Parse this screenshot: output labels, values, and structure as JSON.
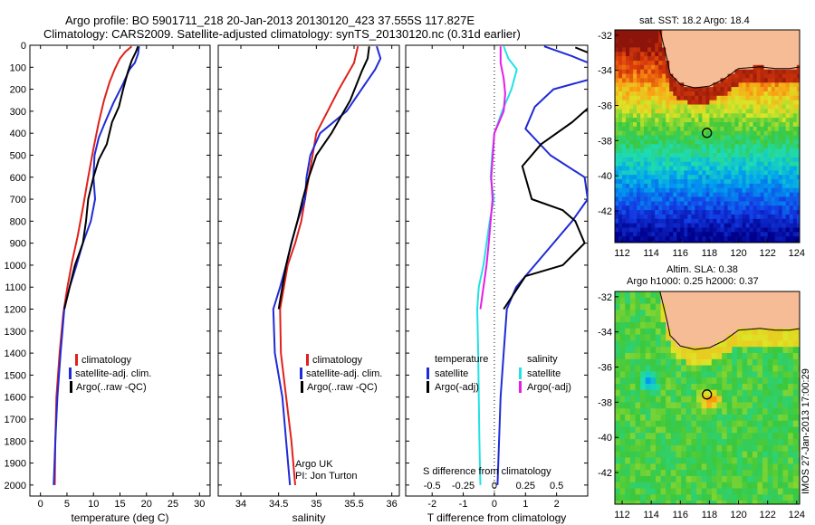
{
  "header": {
    "line1": "Argo profile: BO 5901711_218 20-Jan-2013 20130120_423 37.555S 117.827E",
    "line2": "Climatology: CARS2009. Satellite-adjusted climatology: synTS_20130120.nc (0.31d earlier)"
  },
  "colors": {
    "climatology": "#e0211b",
    "satellite": "#1f2bd6",
    "argo": "#000000",
    "cyan": "#22e1e6",
    "magenta": "#e81ce6"
  },
  "chart_data": [
    {
      "type": "line",
      "id": "temperature",
      "xlabel": "temperature (deg C)",
      "ylabel": "",
      "xlim": [
        -2,
        32
      ],
      "ylim": [
        0,
        2050
      ],
      "xticks": [
        0,
        5,
        10,
        15,
        20,
        25,
        30
      ],
      "yticks": [
        0,
        100,
        200,
        300,
        400,
        500,
        600,
        700,
        800,
        900,
        1000,
        1100,
        1200,
        1300,
        1400,
        1500,
        1600,
        1700,
        1800,
        1900,
        2000
      ],
      "legend": {
        "placement": "lower-center",
        "entries": [
          "climatology",
          "satellite-adj. clim.",
          "Argo(..raw -QC)"
        ]
      },
      "series": [
        {
          "name": "climatology",
          "color": "#e0211b",
          "points": [
            [
              17.2,
              5
            ],
            [
              16.0,
              30
            ],
            [
              15.0,
              60
            ],
            [
              14.0,
              110
            ],
            [
              13.0,
              170
            ],
            [
              12.0,
              250
            ],
            [
              11.0,
              350
            ],
            [
              10.0,
              470
            ],
            [
              9.0,
              600
            ],
            [
              8.0,
              740
            ],
            [
              7.0,
              870
            ],
            [
              6.0,
              980
            ],
            [
              5.0,
              1110
            ],
            [
              4.3,
              1220
            ],
            [
              3.6,
              1400
            ],
            [
              3.0,
              1600
            ],
            [
              2.8,
              1800
            ],
            [
              2.7,
              2000
            ]
          ]
        },
        {
          "name": "satellite-adj. clim.",
          "color": "#1f2bd6",
          "points": [
            [
              18.6,
              5
            ],
            [
              18.4,
              40
            ],
            [
              17.8,
              80
            ],
            [
              16.8,
              110
            ],
            [
              15.5,
              180
            ],
            [
              13.8,
              260
            ],
            [
              12.2,
              350
            ],
            [
              11.0,
              420
            ],
            [
              10.2,
              500
            ],
            [
              10.0,
              600
            ],
            [
              10.3,
              700
            ],
            [
              9.5,
              800
            ],
            [
              8.0,
              900
            ],
            [
              6.8,
              1000
            ],
            [
              5.5,
              1100
            ],
            [
              4.5,
              1200
            ],
            [
              3.8,
              1400
            ],
            [
              3.2,
              1600
            ],
            [
              2.8,
              1800
            ],
            [
              2.5,
              2000
            ]
          ]
        },
        {
          "name": "Argo(..raw -QC)",
          "color": "#000000",
          "points": [
            [
              18.4,
              5
            ],
            [
              18.0,
              30
            ],
            [
              17.2,
              70
            ],
            [
              16.5,
              120
            ],
            [
              15.6,
              200
            ],
            [
              14.8,
              280
            ],
            [
              13.5,
              350
            ],
            [
              12.5,
              450
            ],
            [
              11.0,
              520
            ],
            [
              10.0,
              600
            ],
            [
              9.0,
              700
            ],
            [
              8.6,
              800
            ],
            [
              8.0,
              900
            ],
            [
              6.5,
              1000
            ],
            [
              5.5,
              1100
            ],
            [
              4.5,
              1200
            ]
          ]
        }
      ]
    },
    {
      "type": "line",
      "id": "salinity",
      "xlabel": "salinity",
      "ylabel": "",
      "xlim": [
        33.7,
        36.1
      ],
      "ylim": [
        0,
        2050
      ],
      "xticks": [
        34,
        34.5,
        35,
        35.5,
        36
      ],
      "legend": {
        "placement": "lower-center",
        "entries": [
          "climatology",
          "satellite-adj. clim.",
          "Argo(..raw -QC)"
        ]
      },
      "annotation": {
        "lines": [
          "Argo UK",
          "PI: Jon Turton"
        ]
      },
      "series": [
        {
          "name": "climatology",
          "color": "#e0211b",
          "points": [
            [
              35.55,
              5
            ],
            [
              35.5,
              80
            ],
            [
              35.3,
              200
            ],
            [
              35.15,
              300
            ],
            [
              35.0,
              400
            ],
            [
              34.95,
              500
            ],
            [
              34.9,
              600
            ],
            [
              34.85,
              700
            ],
            [
              34.8,
              800
            ],
            [
              34.72,
              900
            ],
            [
              34.62,
              1000
            ],
            [
              34.57,
              1100
            ],
            [
              34.52,
              1200
            ],
            [
              34.53,
              1400
            ],
            [
              34.6,
              1600
            ],
            [
              34.67,
              1800
            ],
            [
              34.72,
              2000
            ]
          ]
        },
        {
          "name": "satellite-adj. clim.",
          "color": "#1f2bd6",
          "points": [
            [
              35.8,
              5
            ],
            [
              35.85,
              60
            ],
            [
              35.78,
              110
            ],
            [
              35.6,
              200
            ],
            [
              35.4,
              300
            ],
            [
              35.05,
              400
            ],
            [
              34.92,
              500
            ],
            [
              34.87,
              600
            ],
            [
              34.85,
              700
            ],
            [
              34.75,
              800
            ],
            [
              34.67,
              900
            ],
            [
              34.6,
              1000
            ],
            [
              34.52,
              1100
            ],
            [
              34.43,
              1200
            ],
            [
              34.45,
              1400
            ],
            [
              34.55,
              1600
            ],
            [
              34.6,
              1800
            ],
            [
              34.65,
              2000
            ]
          ]
        },
        {
          "name": "Argo(..raw -QC)",
          "color": "#000000",
          "points": [
            [
              35.7,
              5
            ],
            [
              35.68,
              60
            ],
            [
              35.6,
              120
            ],
            [
              35.45,
              250
            ],
            [
              35.2,
              400
            ],
            [
              35.0,
              500
            ],
            [
              34.9,
              600
            ],
            [
              34.82,
              700
            ],
            [
              34.75,
              800
            ],
            [
              34.67,
              900
            ],
            [
              34.6,
              1000
            ],
            [
              34.55,
              1100
            ],
            [
              34.5,
              1200
            ]
          ]
        }
      ]
    },
    {
      "type": "line",
      "id": "differences",
      "xlabel": "T difference from climatology",
      "xlabel2": "S difference from climatology",
      "ylabel": "",
      "xlim": [
        -2.85,
        3.0
      ],
      "ylim": [
        0,
        2050
      ],
      "xticks": [
        -2,
        -1,
        0,
        1,
        2
      ],
      "xticks_s": [
        "-0.5",
        "-0.25",
        "0",
        "0.25",
        "0.5"
      ],
      "legend": {
        "placement": "lower-center",
        "temperature_header": "temperature",
        "salinity_header": "salinity",
        "entries": [
          "satellite",
          "Argo(-adj)",
          "satellite",
          "Argo(-adj)"
        ]
      },
      "series": [
        {
          "name": "temperature satellite",
          "color": "#1f2bd6",
          "points": [
            [
              1.6,
              5
            ],
            [
              2.5,
              50
            ],
            [
              3.2,
              90
            ],
            [
              3.2,
              150
            ],
            [
              1.9,
              200
            ],
            [
              1.3,
              280
            ],
            [
              1.0,
              380
            ],
            [
              1.8,
              500
            ],
            [
              2.9,
              600
            ],
            [
              3.0,
              700
            ],
            [
              2.5,
              800
            ],
            [
              1.9,
              900
            ],
            [
              1.3,
              1000
            ],
            [
              0.7,
              1100
            ],
            [
              0.4,
              1200
            ],
            [
              0.3,
              1400
            ],
            [
              0.2,
              1600
            ],
            [
              0.15,
              1800
            ],
            [
              0.1,
              2000
            ]
          ]
        },
        {
          "name": "temperature Argo(-adj)",
          "color": "#000000",
          "points": [
            [
              2.6,
              10
            ],
            [
              3.3,
              50
            ],
            [
              3.3,
              250
            ],
            [
              2.5,
              350
            ],
            [
              1.5,
              450
            ],
            [
              0.9,
              550
            ],
            [
              1.2,
              700
            ],
            [
              2.2,
              750
            ],
            [
              2.6,
              800
            ],
            [
              2.9,
              900
            ],
            [
              2.2,
              1000
            ],
            [
              1.0,
              1050
            ],
            [
              0.3,
              1200
            ]
          ]
        },
        {
          "name": "salinity satellite",
          "color": "#22e1e6",
          "points": [
            [
              0.3,
              5
            ],
            [
              0.45,
              60
            ],
            [
              0.72,
              110
            ],
            [
              0.55,
              200
            ],
            [
              0.25,
              300
            ],
            [
              0.0,
              400
            ],
            [
              -0.07,
              500
            ],
            [
              -0.12,
              600
            ],
            [
              -0.02,
              700
            ],
            [
              -0.15,
              800
            ],
            [
              -0.25,
              900
            ],
            [
              -0.35,
              1000
            ],
            [
              -0.5,
              1100
            ],
            [
              -0.55,
              1200
            ],
            [
              -0.52,
              1400
            ],
            [
              -0.5,
              1600
            ],
            [
              -0.48,
              1800
            ],
            [
              -0.45,
              2000
            ]
          ]
        },
        {
          "name": "salinity Argo(-adj)",
          "color": "#e81ce6",
          "points": [
            [
              0.2,
              5
            ],
            [
              0.2,
              80
            ],
            [
              0.3,
              150
            ],
            [
              0.35,
              220
            ],
            [
              0.3,
              300
            ],
            [
              0.0,
              400
            ],
            [
              -0.05,
              500
            ],
            [
              -0.1,
              600
            ],
            [
              -0.06,
              700
            ],
            [
              -0.12,
              800
            ],
            [
              -0.18,
              900
            ],
            [
              -0.25,
              1000
            ],
            [
              -0.35,
              1100
            ],
            [
              -0.45,
              1200
            ]
          ]
        }
      ]
    },
    {
      "type": "heatmap",
      "id": "sst_map",
      "title": "sat. SST: 18.2  Argo: 18.4",
      "xlim": [
        111.5,
        124.2
      ],
      "ylim": [
        -43.8,
        -31.7
      ],
      "xticks": [
        112,
        114,
        116,
        118,
        120,
        122,
        124
      ],
      "yticks": [
        -32,
        -34,
        -36,
        -38,
        -40,
        -42
      ],
      "marker": {
        "lon": 117.83,
        "lat": -37.56
      }
    },
    {
      "type": "heatmap",
      "id": "sla_map",
      "title": "Altim. SLA: 0.38",
      "subtitle": "Argo h1000: 0.25 h2000: 0.37",
      "xlim": [
        111.5,
        124.2
      ],
      "ylim": [
        -43.8,
        -31.7
      ],
      "xticks": [
        112,
        114,
        116,
        118,
        120,
        122,
        124
      ],
      "yticks": [
        -32,
        -34,
        -36,
        -38,
        -40,
        -42
      ],
      "marker": {
        "lon": 117.83,
        "lat": -37.56
      },
      "side_text": "IMOS 27-Jan-2013 17:00:29"
    }
  ]
}
